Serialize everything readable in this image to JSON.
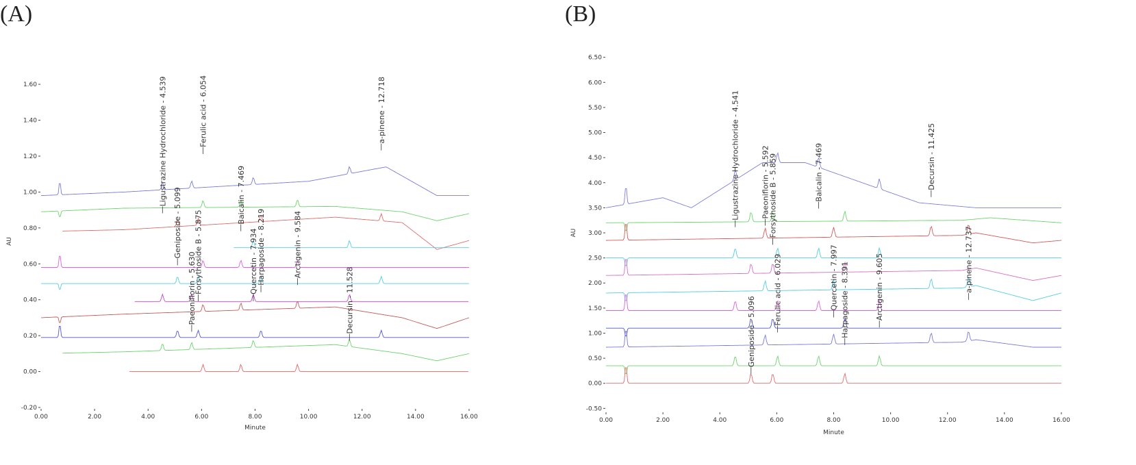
{
  "chart_data": [
    {
      "type": "line",
      "panel_label": "(A)",
      "xlabel": "Minute",
      "ylabel": "AU",
      "xlim": [
        0,
        16
      ],
      "ylim": [
        -0.2,
        1.65
      ],
      "xticks": [
        "0.00",
        "2.00",
        "4.00",
        "6.00",
        "8.00",
        "10.00",
        "12.00",
        "14.00",
        "16.00"
      ],
      "yticks": [
        "-0.20",
        "0.00",
        "0.20",
        "0.40",
        "0.60",
        "0.80",
        "1.00",
        "1.20",
        "1.40",
        "1.60"
      ],
      "series": [
        {
          "name": "trace-1",
          "color": "#6a6ad8",
          "baseline": 0.98,
          "start": 0,
          "drift": [
            [
              3.1,
              0.02
            ],
            [
              10,
              0.08
            ],
            [
              12.9,
              0.16
            ],
            [
              14.8,
              0.0
            ],
            [
              16,
              0.0
            ]
          ]
        },
        {
          "name": "trace-2",
          "color": "#5ad05a",
          "baseline": 0.89,
          "start": 0,
          "drift": [
            [
              3.1,
              0.02
            ],
            [
              11.0,
              0.03
            ],
            [
              13.5,
              0.0
            ],
            [
              14.8,
              -0.05
            ],
            [
              16,
              -0.01
            ]
          ]
        },
        {
          "name": "trace-3",
          "color": "#e05a5a",
          "baseline": 0.78,
          "start": 0.8,
          "drift": [
            [
              3.1,
              0.01
            ],
            [
              11.0,
              0.08
            ],
            [
              13.5,
              0.05
            ],
            [
              14.8,
              -0.1
            ],
            [
              16,
              -0.05
            ]
          ]
        },
        {
          "name": "trace-4",
          "color": "#40c8e0",
          "baseline": 0.69,
          "start": 7.2,
          "drift": []
        },
        {
          "name": "trace-5",
          "color": "#d850d8",
          "baseline": 0.58,
          "start": 0,
          "drift": []
        },
        {
          "name": "trace-6",
          "color": "#40c8e0",
          "baseline": 0.49,
          "start": 0,
          "drift": []
        },
        {
          "name": "trace-7",
          "color": "#c030c0",
          "baseline": 0.39,
          "start": 3.5,
          "drift": []
        },
        {
          "name": "trace-8",
          "color": "#c04848",
          "baseline": 0.3,
          "start": 0,
          "drift": [
            [
              3.1,
              0.02
            ],
            [
              11.0,
              0.06
            ],
            [
              13.5,
              0.0
            ],
            [
              14.8,
              -0.06
            ],
            [
              16,
              0.0
            ]
          ]
        },
        {
          "name": "trace-9",
          "color": "#4040d0",
          "baseline": 0.19,
          "start": 0,
          "drift": []
        },
        {
          "name": "trace-10",
          "color": "#5ad05a",
          "baseline": 0.1,
          "start": 0.8,
          "drift": [
            [
              3.1,
              0.01
            ],
            [
              11.0,
              0.05
            ],
            [
              13.5,
              0.0
            ],
            [
              14.8,
              -0.04
            ],
            [
              16,
              0.0
            ]
          ]
        },
        {
          "name": "trace-11",
          "color": "#e05a5a",
          "baseline": 0.0,
          "start": 3.3,
          "drift": []
        }
      ],
      "peaks": [
        {
          "label": "Ligustrazine Hydrochloride - 4.539",
          "x": 4.539,
          "y_label": 0.92
        },
        {
          "label": "Geniposide - 5.099",
          "x": 5.099,
          "y_label": 0.63
        },
        {
          "label": "Ferulic acid - 6.054",
          "x": 6.054,
          "y_label": 1.25
        },
        {
          "label": "Paeoniflorin - 5.630",
          "x": 5.63,
          "y_label": 0.26
        },
        {
          "label": "Forsythoside B - 5.875",
          "x": 5.875,
          "y_label": 0.43
        },
        {
          "label": "Baicalin - 7.469",
          "x": 7.469,
          "y_label": 0.82
        },
        {
          "label": "Quercetin - 7.934",
          "x": 7.934,
          "y_label": 0.43
        },
        {
          "label": "Harpagoside - 8.219",
          "x": 8.219,
          "y_label": 0.48
        },
        {
          "label": "Arctigenin - 9.584",
          "x": 9.584,
          "y_label": 0.52
        },
        {
          "label": "Decursin - 11.528",
          "x": 11.528,
          "y_label": 0.21
        },
        {
          "label": "a-pinene - 12.718",
          "x": 12.718,
          "y_label": 1.27
        }
      ]
    },
    {
      "type": "line",
      "panel_label": "(B)",
      "xlabel": "Minute",
      "ylabel": "AU",
      "xlim": [
        0,
        16
      ],
      "ylim": [
        -0.55,
        6.55
      ],
      "xticks": [
        "0.00",
        "2.00",
        "4.00",
        "6.00",
        "8.00",
        "10.00",
        "12.00",
        "14.00",
        "16.00"
      ],
      "yticks": [
        "-0.50",
        "0.00",
        "0.50",
        "1.00",
        "1.50",
        "2.00",
        "2.50",
        "3.00",
        "3.50",
        "4.00",
        "4.50",
        "5.00",
        "5.50",
        "6.00",
        "6.50"
      ],
      "series": [
        {
          "name": "trace-1",
          "color": "#7070d8",
          "baseline": 3.5,
          "start": 0,
          "drift": [
            [
              2.0,
              0.2
            ],
            [
              3.0,
              0.0
            ],
            [
              5.5,
              0.9
            ],
            [
              7.0,
              0.9
            ],
            [
              9.0,
              0.5
            ],
            [
              11.0,
              0.1
            ],
            [
              13.0,
              0.0
            ],
            [
              16,
              0.0
            ]
          ]
        },
        {
          "name": "trace-2",
          "color": "#5ad05a",
          "baseline": 3.2,
          "start": 0,
          "drift": [
            [
              12.5,
              0.05
            ],
            [
              13.5,
              0.1
            ],
            [
              16,
              0.0
            ]
          ]
        },
        {
          "name": "trace-3",
          "color": "#d04848",
          "baseline": 2.85,
          "start": 0,
          "drift": [
            [
              12.5,
              0.1
            ],
            [
              13.0,
              0.15
            ],
            [
              15.0,
              -0.05
            ],
            [
              16,
              0.0
            ]
          ]
        },
        {
          "name": "trace-4",
          "color": "#40c8e0",
          "baseline": 2.5,
          "start": 0,
          "drift": []
        },
        {
          "name": "trace-5",
          "color": "#d060c0",
          "baseline": 2.15,
          "start": 0,
          "drift": [
            [
              12.5,
              0.1
            ],
            [
              13.0,
              0.15
            ],
            [
              15.0,
              -0.1
            ],
            [
              16,
              0.0
            ]
          ]
        },
        {
          "name": "trace-6",
          "color": "#40c8e0",
          "baseline": 1.8,
          "start": 0,
          "drift": [
            [
              12.5,
              0.1
            ],
            [
              13.0,
              0.15
            ],
            [
              15.0,
              -0.15
            ],
            [
              16,
              0.0
            ]
          ]
        },
        {
          "name": "trace-7",
          "color": "#d850d8",
          "baseline": 1.45,
          "start": 0,
          "drift": []
        },
        {
          "name": "trace-8",
          "color": "#4040c0",
          "baseline": 1.1,
          "start": 0,
          "drift": []
        },
        {
          "name": "trace-9",
          "color": "#6a6ad8",
          "baseline": 0.72,
          "start": 0,
          "drift": [
            [
              12.5,
              0.1
            ],
            [
              13.0,
              0.15
            ],
            [
              15.0,
              0.0
            ],
            [
              16,
              0.0
            ]
          ]
        },
        {
          "name": "trace-10",
          "color": "#5ad05a",
          "baseline": 0.35,
          "start": 0,
          "drift": []
        },
        {
          "name": "trace-11",
          "color": "#e05a5a",
          "baseline": 0.0,
          "start": 0,
          "drift": []
        }
      ],
      "peaks": [
        {
          "label": "Ligustrazine Hydrochloride - 4.541",
          "x": 4.541,
          "y_label": 3.25
        },
        {
          "label": "Paeoniflorin - 5.592",
          "x": 5.592,
          "y_label": 3.28
        },
        {
          "label": "Forsythoside B - 5.859",
          "x": 5.859,
          "y_label": 2.9
        },
        {
          "label": "Baicalin - 7.469",
          "x": 7.469,
          "y_label": 3.62
        },
        {
          "label": "Decursin - 11.425",
          "x": 11.425,
          "y_label": 3.85
        },
        {
          "label": "Geniposide - 5.096",
          "x": 5.096,
          "y_label": 0.32
        },
        {
          "label": "Ferulic acid - 6.029",
          "x": 6.029,
          "y_label": 1.15
        },
        {
          "label": "Quercetin - 7.997",
          "x": 7.997,
          "y_label": 1.45
        },
        {
          "label": "Harpagoside - 8.391",
          "x": 8.391,
          "y_label": 0.9
        },
        {
          "label": "Arctigenin - 9.605",
          "x": 9.605,
          "y_label": 1.25
        },
        {
          "label": "a-pinene - 12.737",
          "x": 12.737,
          "y_label": 1.8
        }
      ]
    }
  ]
}
